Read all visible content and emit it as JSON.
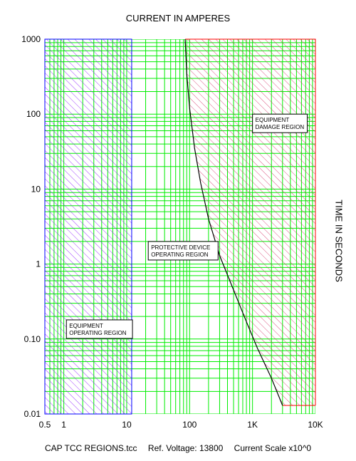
{
  "chart_data": {
    "type": "line",
    "title": "CURRENT IN AMPERES",
    "xlabel": "CURRENT IN AMPERES",
    "ylabel": "TIME IN SECONDS",
    "xscale": "log",
    "yscale": "log",
    "xlim": [
      0.5,
      10000
    ],
    "ylim": [
      0.01,
      1000
    ],
    "x_ticks": [
      {
        "value": 0.5,
        "label": "0.5"
      },
      {
        "value": 1,
        "label": "1"
      },
      {
        "value": 10,
        "label": "10"
      },
      {
        "value": 100,
        "label": "100"
      },
      {
        "value": 1000,
        "label": "1K"
      },
      {
        "value": 10000,
        "label": "10K"
      }
    ],
    "y_ticks": [
      {
        "value": 1000,
        "label": "1000"
      },
      {
        "value": 100,
        "label": "100"
      },
      {
        "value": 10,
        "label": "10"
      },
      {
        "value": 1,
        "label": "1"
      },
      {
        "value": 0.1,
        "label": "0.10"
      },
      {
        "value": 0.01,
        "label": "0.01"
      }
    ],
    "grid": true,
    "grid_color": "#00ee00",
    "regions": [
      {
        "label_lines": [
          "EQUIPMENT",
          "OPERATING REGION"
        ],
        "color": "#0000ff",
        "hatch_color": "#8000ff",
        "x_range": [
          0.5,
          12
        ],
        "y_range": [
          0.01,
          1000
        ],
        "label_at": {
          "x": 1.1,
          "y": 0.18
        }
      },
      {
        "label_lines": [
          "PROTECTIVE DEVICE",
          "OPERATING REGION"
        ],
        "color": "#00ee00",
        "x_range": [
          12,
          85
        ],
        "y_range": [
          0.01,
          1000
        ],
        "label_at": {
          "x": 22,
          "y": 2.0
        }
      },
      {
        "label_lines": [
          "EQUIPMENT",
          "DAMAGE REGION"
        ],
        "color": "#ff0000",
        "hatch_color": "#d0205a",
        "x_range": [
          85,
          10000
        ],
        "y_range": [
          0.013,
          1000
        ],
        "label_at": {
          "x": 1000,
          "y": 100
        }
      }
    ],
    "series": [
      {
        "color": "#000000",
        "x": [
          85,
          90,
          100,
          120,
          150,
          200,
          300,
          500,
          800,
          1200,
          2000,
          3000,
          10000
        ],
        "y": [
          1000,
          350,
          120,
          35,
          12,
          4,
          1.3,
          0.45,
          0.17,
          0.075,
          0.03,
          0.013,
          0.013
        ]
      }
    ]
  },
  "footer": {
    "file": "CAP TCC REGIONS.tcc",
    "voltage": "Ref. Voltage: 13800",
    "scale": "Current Scale x10^0"
  }
}
